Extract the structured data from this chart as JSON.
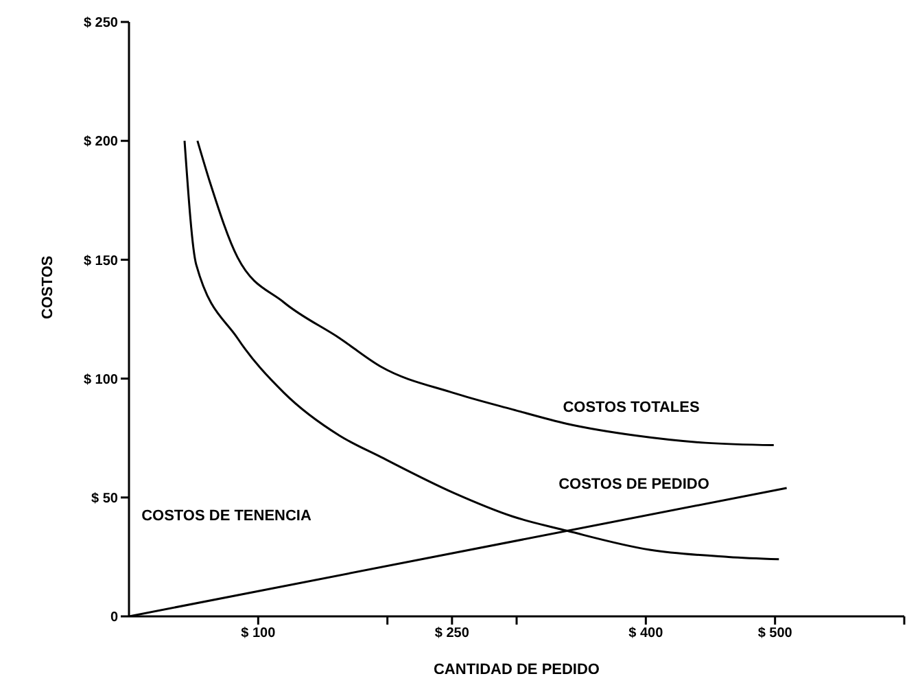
{
  "chart_data": {
    "type": "line",
    "xlabel": "CANTIDAD DE PEDIDO",
    "ylabel": "COSTOS",
    "xlim": [
      0,
      600
    ],
    "ylim": [
      0,
      250
    ],
    "xticks": [
      {
        "value": 100,
        "label": "$ 100"
      },
      {
        "value": 200,
        "label": null
      },
      {
        "value": 250,
        "label": "$ 250"
      },
      {
        "value": 300,
        "label": null
      },
      {
        "value": 400,
        "label": "$ 400"
      },
      {
        "value": 500,
        "label": "$ 500"
      },
      {
        "value": 600,
        "label": null
      }
    ],
    "yticks": [
      {
        "value": 0,
        "label": "0"
      },
      {
        "value": 50,
        "label": "$ 50"
      },
      {
        "value": 100,
        "label": "$ 100"
      },
      {
        "value": 150,
        "label": "$ 150"
      },
      {
        "value": 200,
        "label": "$ 200"
      },
      {
        "value": 250,
        "label": "$ 250"
      }
    ],
    "grid": false,
    "marker": "none",
    "line_style": "solid",
    "series": [
      {
        "color": "#000000",
        "x": [
          43,
          52,
          84,
          120,
          163,
          195,
          251,
          297,
          339,
          403,
          464,
          503
        ],
        "values": [
          200,
          148,
          117,
          94,
          76,
          67,
          52,
          42,
          36,
          28,
          25,
          24
        ]
      },
      {
        "color": "#000000",
        "x": [
          53,
          63,
          84,
          120,
          163,
          195,
          251,
          297,
          339,
          393,
          446,
          499
        ],
        "values": [
          200,
          182,
          151,
          132,
          117,
          105,
          94,
          87,
          81,
          76,
          73,
          72
        ]
      },
      {
        "color": "#000000",
        "x": [
          0,
          509
        ],
        "values": [
          0,
          54
        ]
      }
    ],
    "annotations": [
      "COSTOS TOTALES",
      "COSTOS DE TENENCIA",
      "COSTOS DE PEDIDO"
    ]
  }
}
